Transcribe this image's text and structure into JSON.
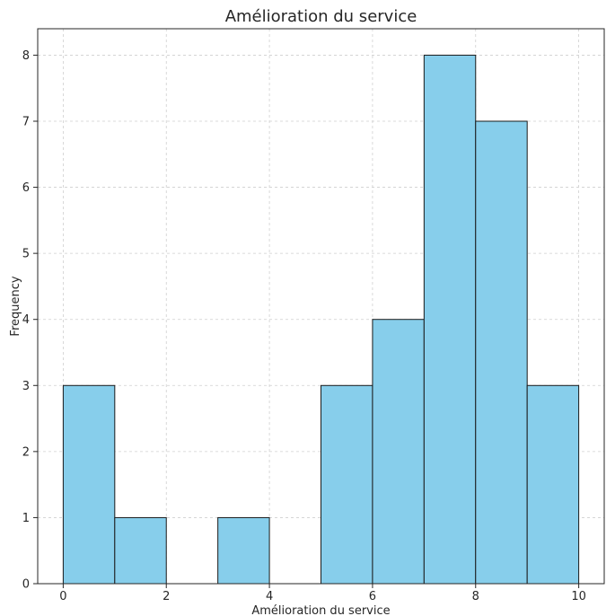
{
  "chart_data": {
    "type": "bar",
    "title": "Amélioration du service",
    "xlabel": "Amélioration du service",
    "ylabel": "Frequency",
    "bins": [
      {
        "start": 0,
        "end": 1,
        "count": 3
      },
      {
        "start": 1,
        "end": 2,
        "count": 1
      },
      {
        "start": 2,
        "end": 3,
        "count": 0
      },
      {
        "start": 3,
        "end": 4,
        "count": 1
      },
      {
        "start": 4,
        "end": 5,
        "count": 0
      },
      {
        "start": 5,
        "end": 6,
        "count": 3
      },
      {
        "start": 6,
        "end": 7,
        "count": 4
      },
      {
        "start": 7,
        "end": 8,
        "count": 8
      },
      {
        "start": 8,
        "end": 9,
        "count": 7
      },
      {
        "start": 9,
        "end": 10,
        "count": 3
      }
    ],
    "xlim": [
      0,
      10
    ],
    "ylim": [
      0,
      8
    ],
    "xticks": [
      0,
      2,
      4,
      6,
      8,
      10
    ],
    "yticks": [
      0,
      1,
      2,
      3,
      4,
      5,
      6,
      7,
      8
    ],
    "grid": true,
    "bar_color": "#87CEEB",
    "edge_color": "#1a1a1a"
  }
}
